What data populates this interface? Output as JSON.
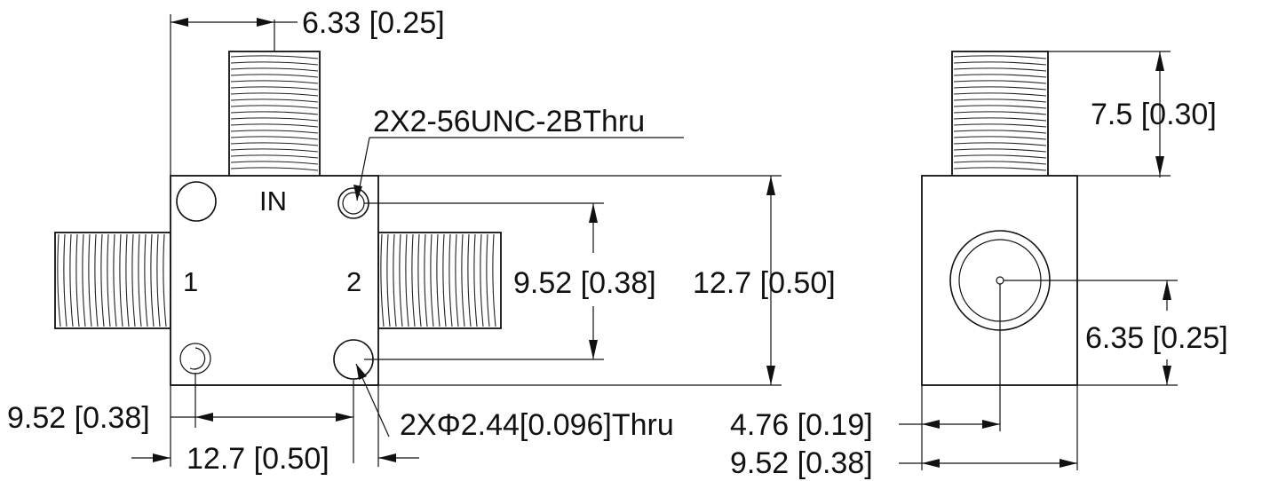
{
  "front_view": {
    "ports": {
      "in": "IN",
      "port1": "1",
      "port2": "2"
    },
    "dims": {
      "top_offset": "6.33 [0.25]",
      "tap_holes": "2X2-56UNC-2BThru",
      "hole_spacing_v": "9.52 [0.38]",
      "height": "12.7 [0.50]",
      "hole_offset_left": "9.52 [0.38]",
      "thru_holes": "2XΦ2.44[0.096]Thru",
      "width": "12.7 [0.50]"
    }
  },
  "side_view": {
    "dims": {
      "connector_height": "7.5 [0.30]",
      "center_height": "6.35 [0.25]",
      "center_offset": "4.76 [0.19]",
      "depth": "9.52 [0.38]"
    }
  }
}
